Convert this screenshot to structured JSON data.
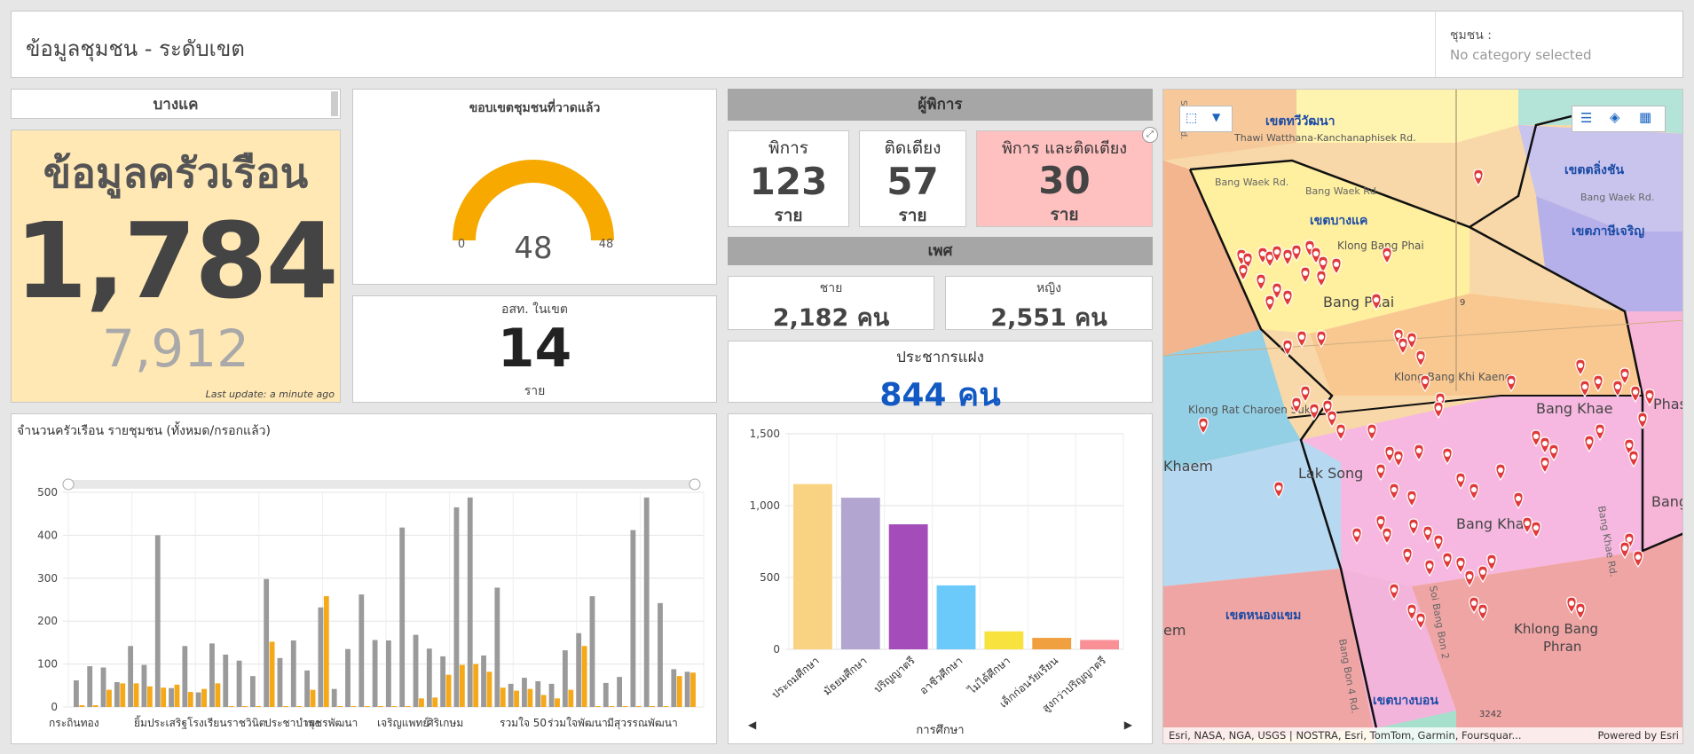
{
  "header": {
    "title": "ข้อมูลชุมชน - ระดับเขต",
    "selector_label": "ชุมชน :",
    "selector_value": "No category selected"
  },
  "district": {
    "name": "บางแค"
  },
  "household": {
    "title": "ข้อมูลครัวเรือน",
    "count": "1,784",
    "people": "7,912",
    "last_update": "Last update: a minute ago"
  },
  "gauge": {
    "title": "ขอบเขตชุมชนที่วาดแล้ว",
    "value": "48",
    "min": "0",
    "max": "48",
    "fraction": 1.0
  },
  "volunteer": {
    "title": "อสท. ในเขต",
    "value": "14",
    "unit": "ราย"
  },
  "disabled": {
    "header": "ผู้พิการ",
    "cards": [
      {
        "label": "พิการ",
        "value": "123",
        "unit": "ราย",
        "color": "#ffffff"
      },
      {
        "label": "ติดเตียง",
        "value": "57",
        "unit": "ราย",
        "color": "#ffffff"
      },
      {
        "label": "พิการ และติดเตียง",
        "value": "30",
        "unit": "ราย",
        "color": "#ffc0c0"
      }
    ]
  },
  "gender": {
    "header": "เพศ",
    "male_label": "ชาย",
    "male_value": "2,182 คน",
    "female_label": "หญิง",
    "female_value": "2,551 คน"
  },
  "hidden_pop": {
    "label": "ประชากรแฝง",
    "value": "844 คน",
    "color": "#1259c3"
  },
  "community_chart": {
    "title": "จำนวนครัวเรือน รายชุมชน (ทั้งหมด/กรอกแล้ว)"
  },
  "education_chart": {
    "xlabel": "การศึกษา"
  },
  "map": {
    "attribution": "Esri, NASA, NGA, USGS | NOSTRA, Esri, TomTom, Garmin, Foursquar...",
    "powered": "Powered by Esri",
    "labels": {
      "taweewatana": "เขตทวีวัฒนา",
      "taweewatana_road": "Thawi Watthana-Kanchanaphisek Rd.",
      "talingchan": "เขตตลิ่งชัน",
      "phasicharoen_d": "เขตภาษีเจริญ",
      "bangwaek": "Bang Waek Rd.",
      "bangwaek2": "Bang Waek Rd.",
      "bangwaek3": "Bang Waek Rd.",
      "bangkhae_d": "เขตบางแค",
      "klongbangphai": "Klong Bang Phai",
      "bangphai": "Bang Phai",
      "khikaeng": "Klong Bang Khi Kaeng",
      "ratcharoen": "Klong Rat Charoen Suk",
      "bangkhae_n": "Bang Khae",
      "phasi": "Phasi",
      "khaem": "Khaem",
      "laksong": "Lak Song",
      "bangkhae2": "Bang Khae",
      "bangkhaerd": "Bang Khae Rd.",
      "bang": "Bang",
      "nongkhaem": "เขตหนองแขม",
      "bangbon2": "Soi Bang Bon 2",
      "bangbon4": "Bang Bon 4 Rd.",
      "khlongphran1": "Khlong Bang",
      "khlongphran2": "Phran",
      "bangbon": "เขตบางบอน",
      "em": "em",
      "sai3": "Sai 3 Rd.",
      "rd9": "9",
      "rd3242": "3242"
    }
  },
  "chart_data": [
    {
      "type": "bar",
      "title": "จำนวนครัวเรือน รายชุมชน (ทั้งหมด/กรอกแล้ว)",
      "ylim": [
        0,
        500
      ],
      "yticks": [
        0,
        100,
        200,
        300,
        400,
        500
      ],
      "x_tick_labels": [
        "กระถินทอง",
        "ยิ้มประเสริฐ",
        "โรงเรียนราชวินิต",
        "ประชาบำรุง",
        "เพชรพัฒนา",
        "เจริญแพทย์",
        "ศิริเกษม",
        "รวมใจ 50",
        "ร่วมใจพัฒนา",
        "มีสุวรรณพัฒนา"
      ],
      "series": [
        {
          "color": "#9a9a9a",
          "values": [
            62,
            95,
            92,
            58,
            142,
            98,
            400,
            44,
            142,
            34,
            148,
            122,
            108,
            72,
            298,
            114,
            155,
            85,
            232,
            42,
            135,
            262,
            156,
            155,
            418,
            168,
            136,
            118,
            465,
            488,
            120,
            278,
            54,
            68,
            60,
            54,
            132,
            172,
            258,
            56,
            70,
            412,
            488,
            242,
            88,
            82
          ]
        },
        {
          "color": "#f5a818",
          "values": [
            4,
            4,
            40,
            55,
            55,
            48,
            45,
            52,
            35,
            42,
            55,
            2,
            2,
            2,
            152,
            2,
            2,
            40,
            258,
            2,
            2,
            2,
            2,
            2,
            2,
            20,
            22,
            75,
            98,
            100,
            82,
            45,
            38,
            42,
            28,
            20,
            40,
            142,
            2,
            2,
            2,
            2,
            2,
            2,
            72,
            80
          ]
        }
      ]
    },
    {
      "type": "bar",
      "xlabel": "การศึกษา",
      "ylim": [
        0,
        1500
      ],
      "yticks": [
        0,
        500,
        1000,
        1500
      ],
      "categories": [
        "ประถมศึกษา",
        "มัธยมศึกษา",
        "ปริญญาตรี",
        "อาชีวศึกษา",
        "ไม่ได้ศึกษา",
        "เด็กก่อนวัยเรียน",
        "สูงกว่าปริญญาตรี"
      ],
      "values": [
        1150,
        1055,
        870,
        445,
        125,
        80,
        65
      ],
      "colors": [
        "#fad382",
        "#b2a6d0",
        "#a44dba",
        "#6ccafa",
        "#f8e23d",
        "#f1a040",
        "#f89096"
      ]
    }
  ]
}
